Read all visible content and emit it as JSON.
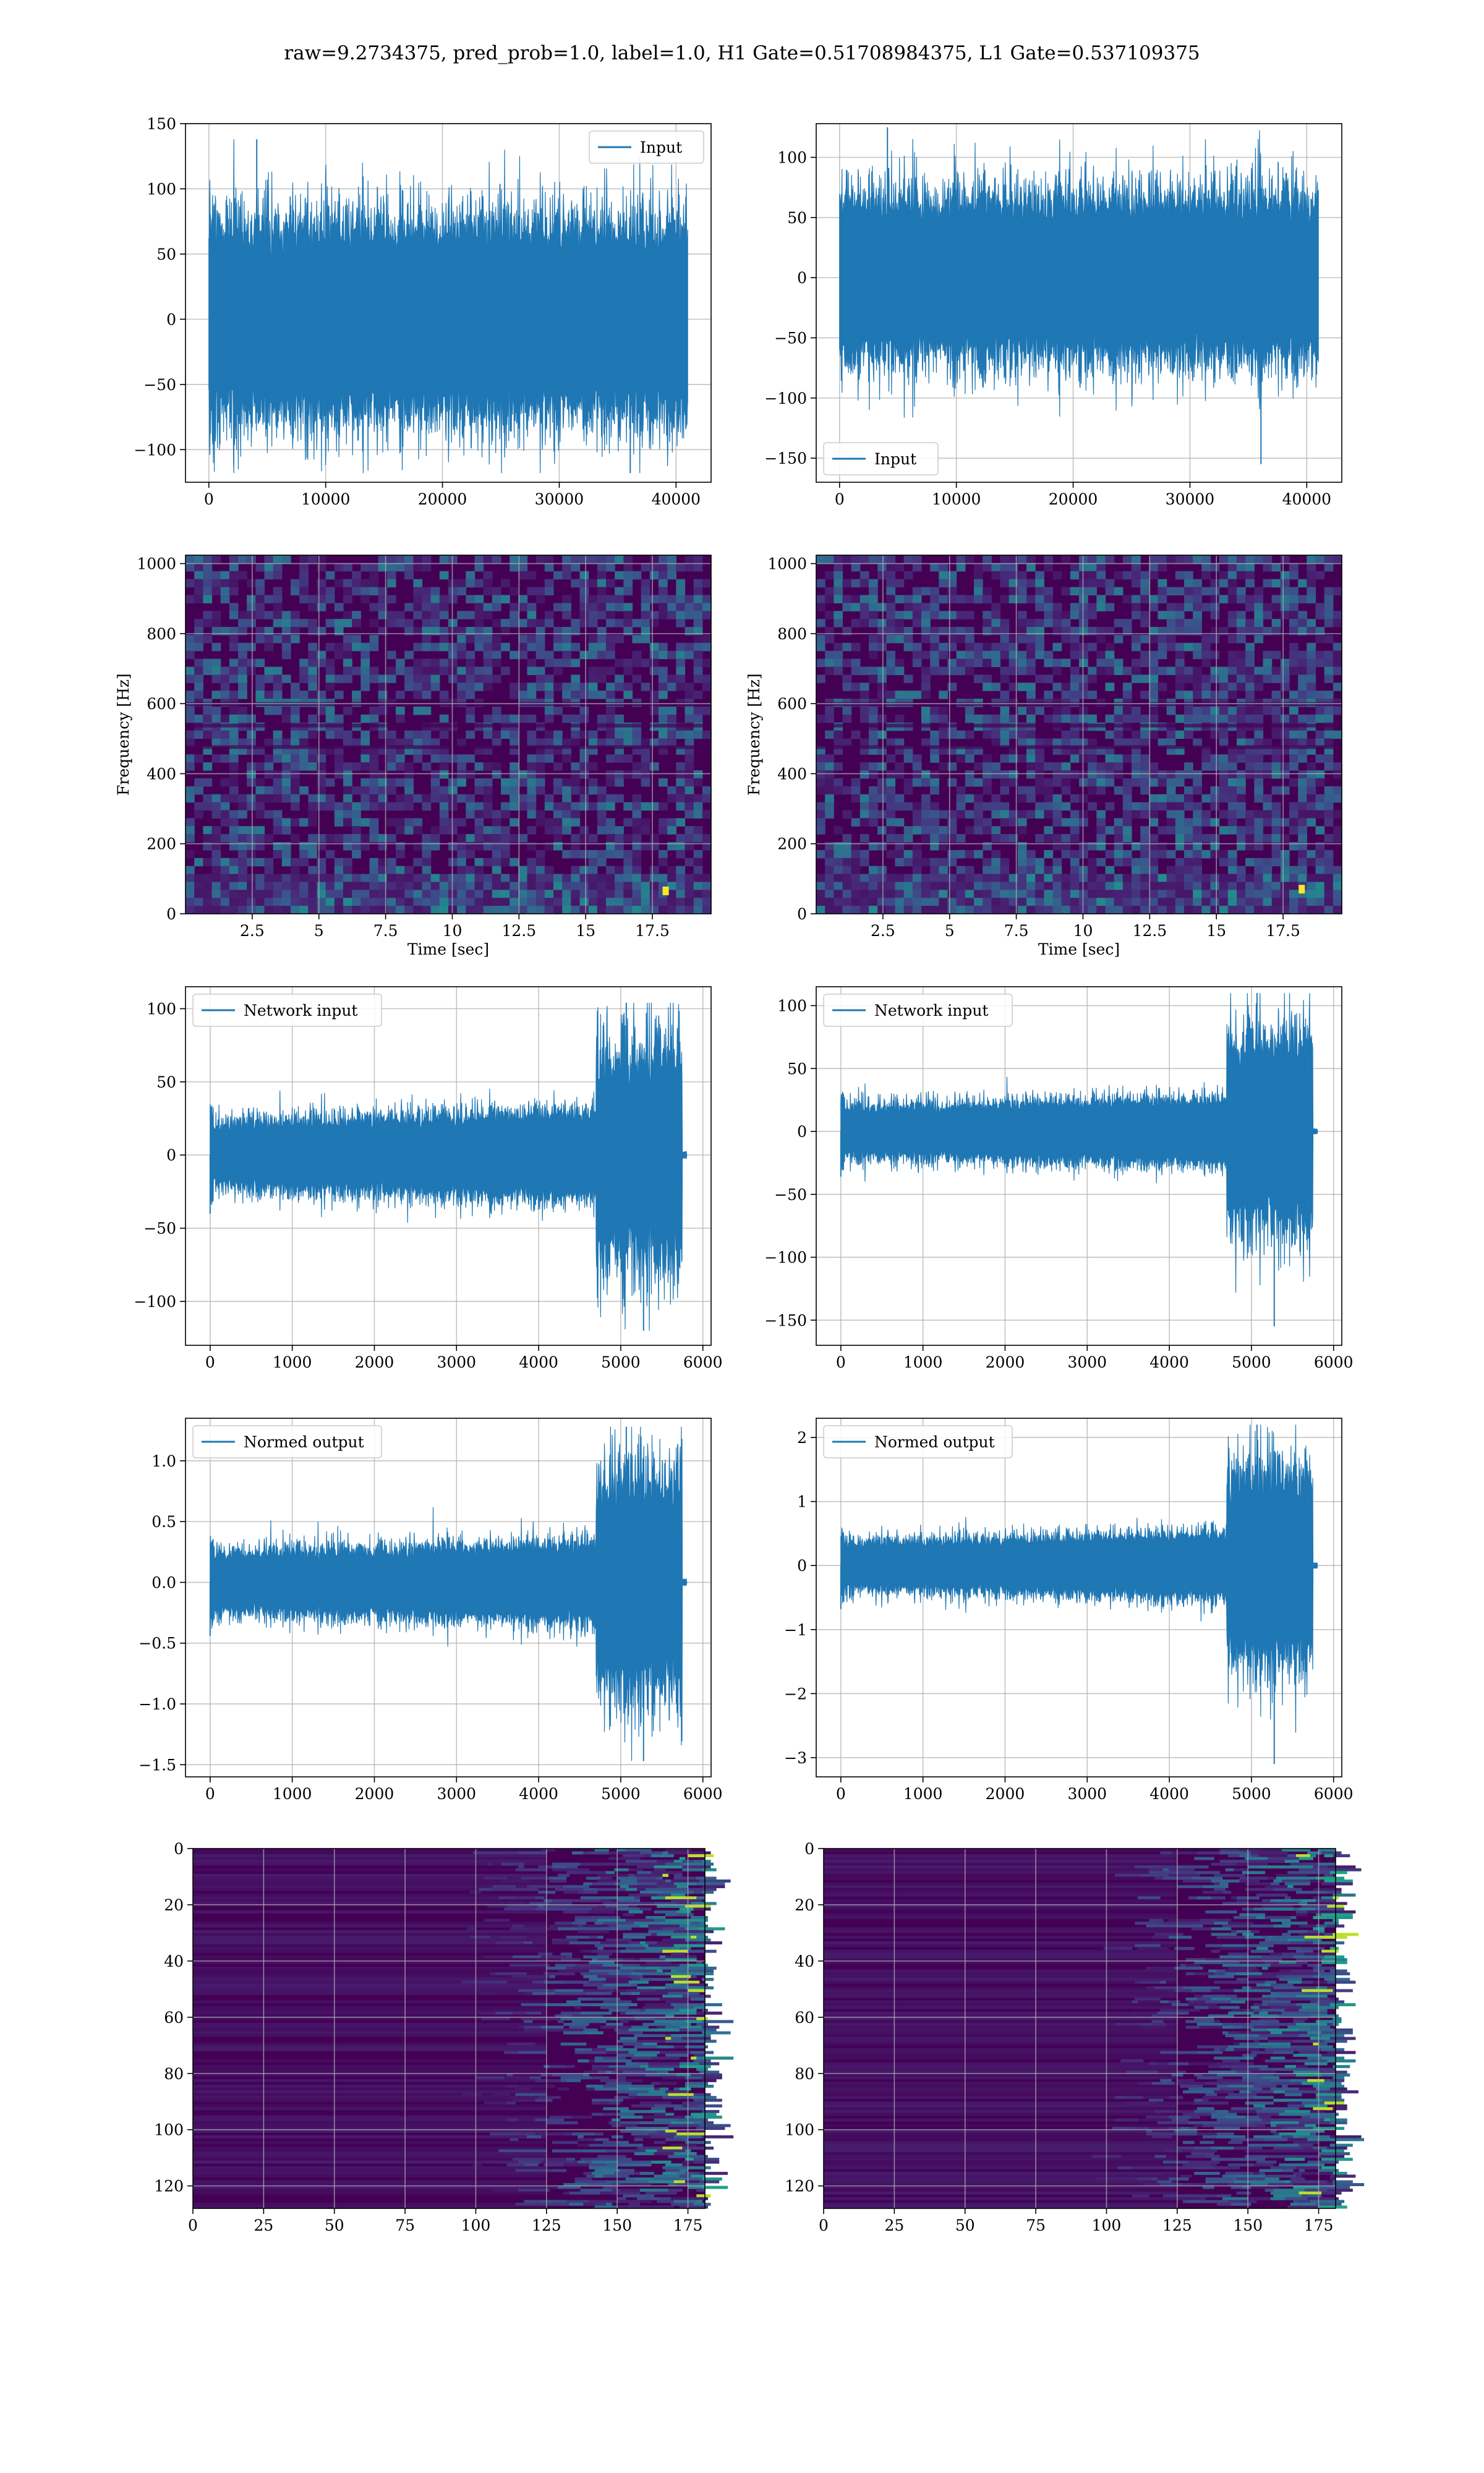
{
  "suptitle": "raw=9.2734375, pred_prob=1.0, label=1.0, H1 Gate=0.51708984375, L1 Gate=0.537109375",
  "colors": {
    "line": "#1f77b4",
    "grid": "#b0b0b0",
    "viridis_dark": "#440154",
    "viridis_mid": "#31688e",
    "viridis_teal": "#21918c",
    "viridis_green": "#5ec962",
    "viridis_yellow": "#fde725"
  },
  "chart_data": [
    {
      "id": "h1_input",
      "type": "line",
      "legend": "Input",
      "legend_loc": "upper right",
      "xlim": [
        -2000,
        43000
      ],
      "ylim": [
        -125,
        150
      ],
      "xticks": [
        0,
        10000,
        20000,
        30000,
        40000
      ],
      "yticks": [
        -100,
        -50,
        0,
        50,
        100,
        150
      ],
      "xlabel": "",
      "ylabel": "",
      "signal": {
        "kind": "noise",
        "n": 41000,
        "std": 28,
        "peak_max": 138,
        "peak_min": -118
      }
    },
    {
      "id": "l1_input",
      "type": "line",
      "legend": "Input",
      "legend_loc": "lower left",
      "xlim": [
        -2000,
        43000
      ],
      "ylim": [
        -170,
        128
      ],
      "xticks": [
        0,
        10000,
        20000,
        30000,
        40000
      ],
      "yticks": [
        -150,
        -100,
        -50,
        0,
        50,
        100
      ],
      "xlabel": "",
      "ylabel": "",
      "signal": {
        "kind": "noise",
        "n": 41000,
        "std": 25,
        "peak_max": 125,
        "peak_min": -155
      }
    },
    {
      "id": "h1_spectrogram",
      "type": "heatmap",
      "xlim": [
        0,
        19.7
      ],
      "ylim": [
        0,
        1024
      ],
      "xticks": [
        2.5,
        5.0,
        7.5,
        10.0,
        12.5,
        15.0,
        17.5
      ],
      "yticks": [
        0,
        200,
        400,
        600,
        800,
        1000
      ],
      "xlabel": "Time [sec]",
      "ylabel": "Frequency [Hz]",
      "colormap": "viridis",
      "bright_spot": {
        "t": 18.0,
        "f": 60
      }
    },
    {
      "id": "l1_spectrogram",
      "type": "heatmap",
      "xlim": [
        0,
        19.7
      ],
      "ylim": [
        0,
        1024
      ],
      "xticks": [
        2.5,
        5.0,
        7.5,
        10.0,
        12.5,
        15.0,
        17.5
      ],
      "yticks": [
        0,
        200,
        400,
        600,
        800,
        1000
      ],
      "xlabel": "Time [sec]",
      "ylabel": "Frequency [Hz]",
      "colormap": "viridis",
      "bright_spot": {
        "t": 18.2,
        "f": 65
      }
    },
    {
      "id": "h1_network_input",
      "type": "line",
      "legend": "Network input",
      "legend_loc": "upper left",
      "xlim": [
        -300,
        6100
      ],
      "ylim": [
        -130,
        115
      ],
      "xticks": [
        0,
        1000,
        2000,
        3000,
        4000,
        5000,
        6000
      ],
      "yticks": [
        -100,
        -50,
        0,
        50,
        100
      ],
      "xlabel": "",
      "ylabel": "",
      "signal": {
        "kind": "chirp",
        "n": 5800,
        "base_std": 10,
        "burst_start": 4700,
        "burst_end": 5750,
        "peak_max": 104,
        "peak_min": -120
      }
    },
    {
      "id": "l1_network_input",
      "type": "line",
      "legend": "Network input",
      "legend_loc": "upper left",
      "xlim": [
        -300,
        6100
      ],
      "ylim": [
        -170,
        115
      ],
      "xticks": [
        0,
        1000,
        2000,
        3000,
        4000,
        5000,
        6000
      ],
      "yticks": [
        -150,
        -100,
        -50,
        0,
        50,
        100
      ],
      "xlabel": "",
      "ylabel": "",
      "signal": {
        "kind": "chirp",
        "n": 5800,
        "base_std": 9,
        "burst_start": 4700,
        "burst_end": 5750,
        "peak_max": 110,
        "peak_min": -155
      }
    },
    {
      "id": "h1_normed_output",
      "type": "line",
      "legend": "Normed output",
      "legend_loc": "upper left",
      "xlim": [
        -300,
        6100
      ],
      "ylim": [
        -1.6,
        1.35
      ],
      "xticks": [
        0,
        1000,
        2000,
        3000,
        4000,
        5000,
        6000
      ],
      "yticks": [
        -1.5,
        -1.0,
        -0.5,
        0.0,
        0.5,
        1.0
      ],
      "yticklabels": [
        "−1.5",
        "−1.0",
        "−0.5",
        "0.0",
        "0.5",
        "1.0"
      ],
      "xlabel": "",
      "ylabel": "",
      "signal": {
        "kind": "chirp",
        "n": 5800,
        "base_std": 0.11,
        "burst_start": 4700,
        "burst_end": 5750,
        "peak_max": 1.28,
        "peak_min": -1.47
      }
    },
    {
      "id": "l1_normed_output",
      "type": "line",
      "legend": "Normed output",
      "legend_loc": "upper left",
      "xlim": [
        -300,
        6100
      ],
      "ylim": [
        -3.3,
        2.3
      ],
      "xticks": [
        0,
        1000,
        2000,
        3000,
        4000,
        5000,
        6000
      ],
      "yticks": [
        -3,
        -2,
        -1,
        0,
        1,
        2
      ],
      "xlabel": "",
      "ylabel": "",
      "signal": {
        "kind": "chirp",
        "n": 5800,
        "base_std": 0.17,
        "burst_start": 4700,
        "burst_end": 5750,
        "peak_max": 2.2,
        "peak_min": -3.1
      }
    },
    {
      "id": "h1_feature_map",
      "type": "heatmap",
      "xlim": [
        0,
        181
      ],
      "ylim": [
        128,
        0
      ],
      "xticks": [
        0,
        25,
        50,
        75,
        100,
        125,
        150,
        175
      ],
      "yticks": [
        0,
        20,
        40,
        60,
        80,
        100,
        120
      ],
      "xlabel": "",
      "ylabel": "",
      "colormap": "viridis",
      "activation_start": 125
    },
    {
      "id": "l1_feature_map",
      "type": "heatmap",
      "xlim": [
        0,
        181
      ],
      "ylim": [
        128,
        0
      ],
      "xticks": [
        0,
        25,
        50,
        75,
        100,
        125,
        150,
        175
      ],
      "yticks": [
        0,
        20,
        40,
        60,
        80,
        100,
        120
      ],
      "xlabel": "",
      "ylabel": "",
      "colormap": "viridis",
      "activation_start": 125
    }
  ]
}
